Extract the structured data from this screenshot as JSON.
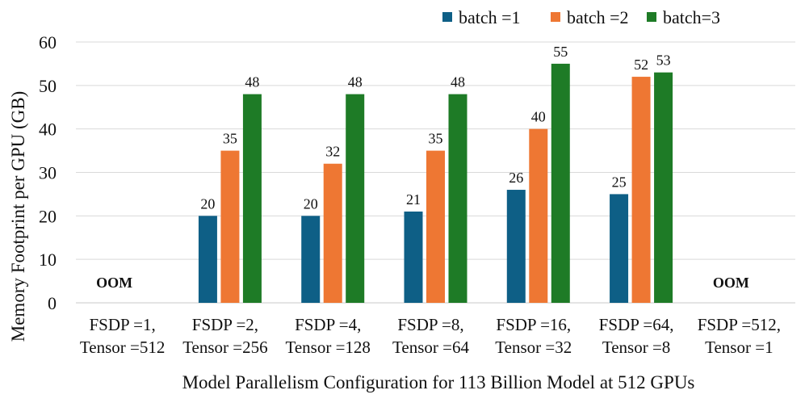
{
  "chart_data": {
    "type": "bar",
    "title": "",
    "xlabel": "Model Parallelism Configuration for 113 Billion Model at 512 GPUs",
    "ylabel": "Memory Footprint per GPU (GB)",
    "ylim": [
      0,
      60
    ],
    "yticks": [
      0,
      10,
      20,
      30,
      40,
      50,
      60
    ],
    "grid": true,
    "legend_position": "top-right",
    "categories": [
      [
        "FSDP =1,",
        "Tensor =512"
      ],
      [
        "FSDP =2,",
        "Tensor =256"
      ],
      [
        "FSDP =4,",
        "Tensor =128"
      ],
      [
        "FSDP =8,",
        "Tensor =64"
      ],
      [
        "FSDP =16,",
        "Tensor =32"
      ],
      [
        "FSDP =64,",
        "Tensor =8"
      ],
      [
        "FSDP =512,",
        "Tensor =1"
      ]
    ],
    "series": [
      {
        "name": "batch =1",
        "color": "#0e5f86",
        "values": [
          null,
          20,
          20,
          21,
          26,
          25,
          null
        ]
      },
      {
        "name": "batch =2",
        "color": "#ee7733",
        "values": [
          null,
          35,
          32,
          35,
          40,
          52,
          null
        ]
      },
      {
        "name": "batch=3",
        "color": "#1e7b26",
        "values": [
          null,
          48,
          48,
          48,
          55,
          53,
          null
        ]
      }
    ],
    "annotations": [
      {
        "category_index": 0,
        "text": "OOM"
      },
      {
        "category_index": 6,
        "text": "OOM"
      }
    ]
  }
}
